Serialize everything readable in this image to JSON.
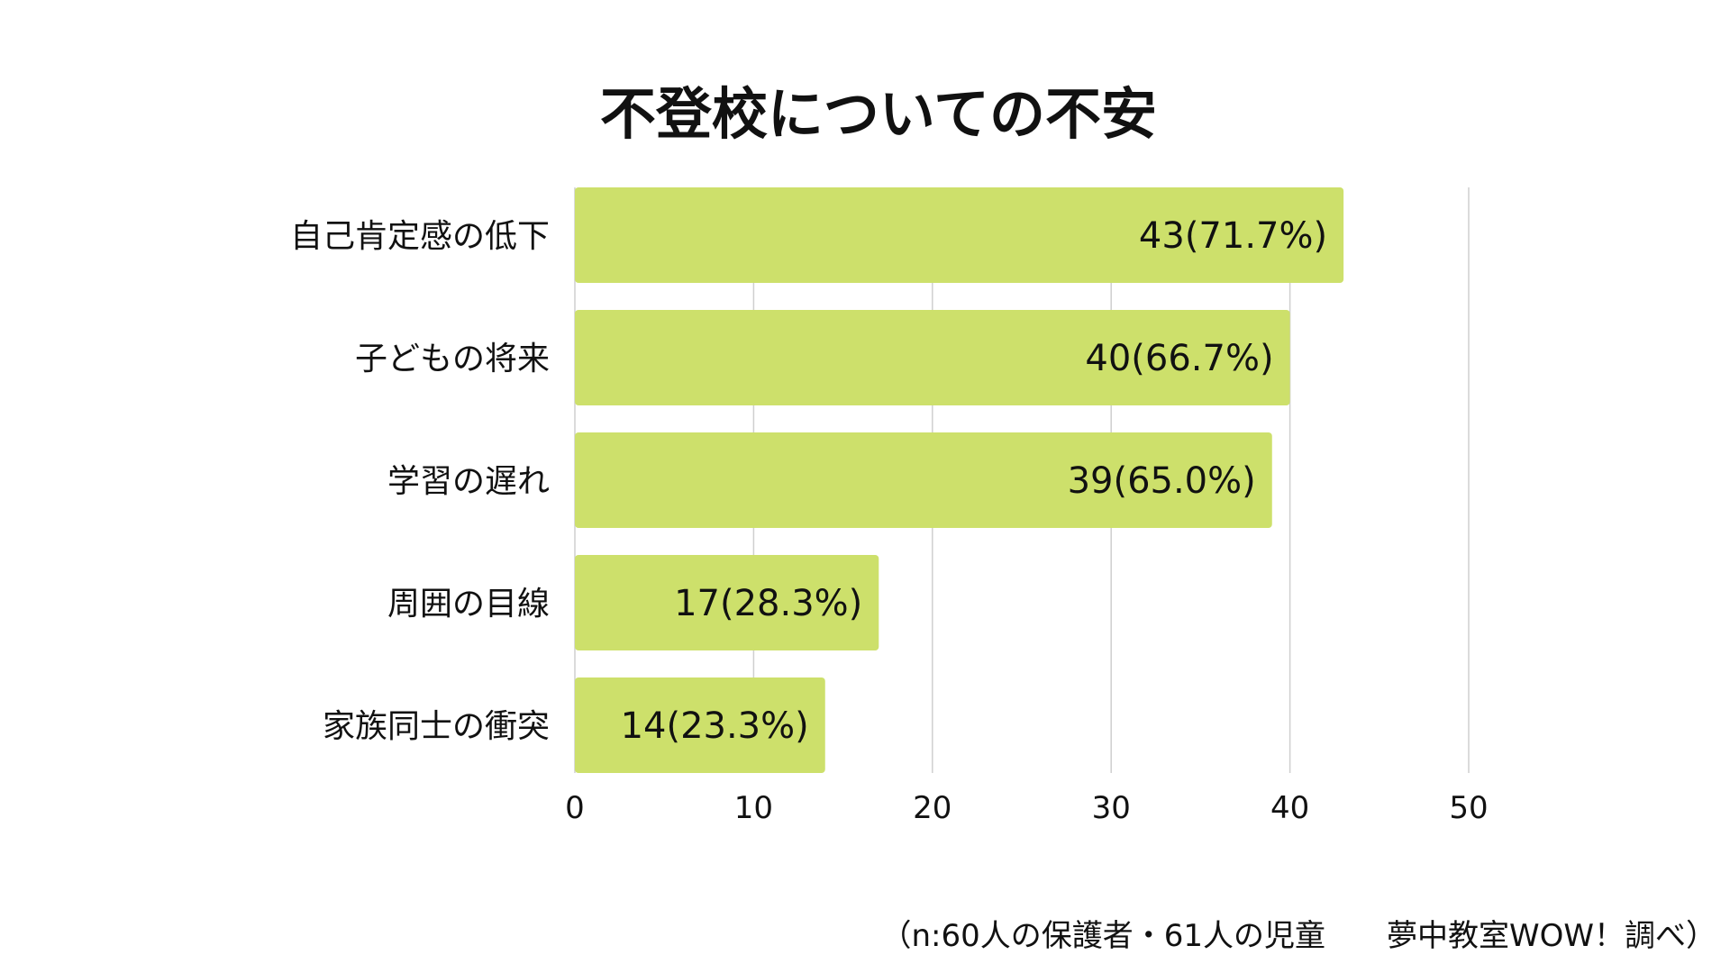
{
  "chart_data": {
    "type": "bar",
    "orientation": "horizontal",
    "title": "不登校についての不安",
    "categories": [
      "自己肯定感の低下",
      "子どもの将来",
      "学習の遅れ",
      "周囲の目線",
      "家族同士の衝突"
    ],
    "values": [
      43,
      40,
      39,
      17,
      14
    ],
    "data_labels": [
      "43(71.7%)",
      "40(66.7%)",
      "39(65.0%)",
      "17(28.3%)",
      "14(23.3%)"
    ],
    "x_ticks": [
      "0",
      "10",
      "20",
      "30",
      "40",
      "50"
    ],
    "xlim": [
      0,
      50
    ],
    "grid": true,
    "bar_color": "#cde06b",
    "note": "（n:60人の保護者・61人の児童　　夢中教室WOW！調べ）"
  }
}
